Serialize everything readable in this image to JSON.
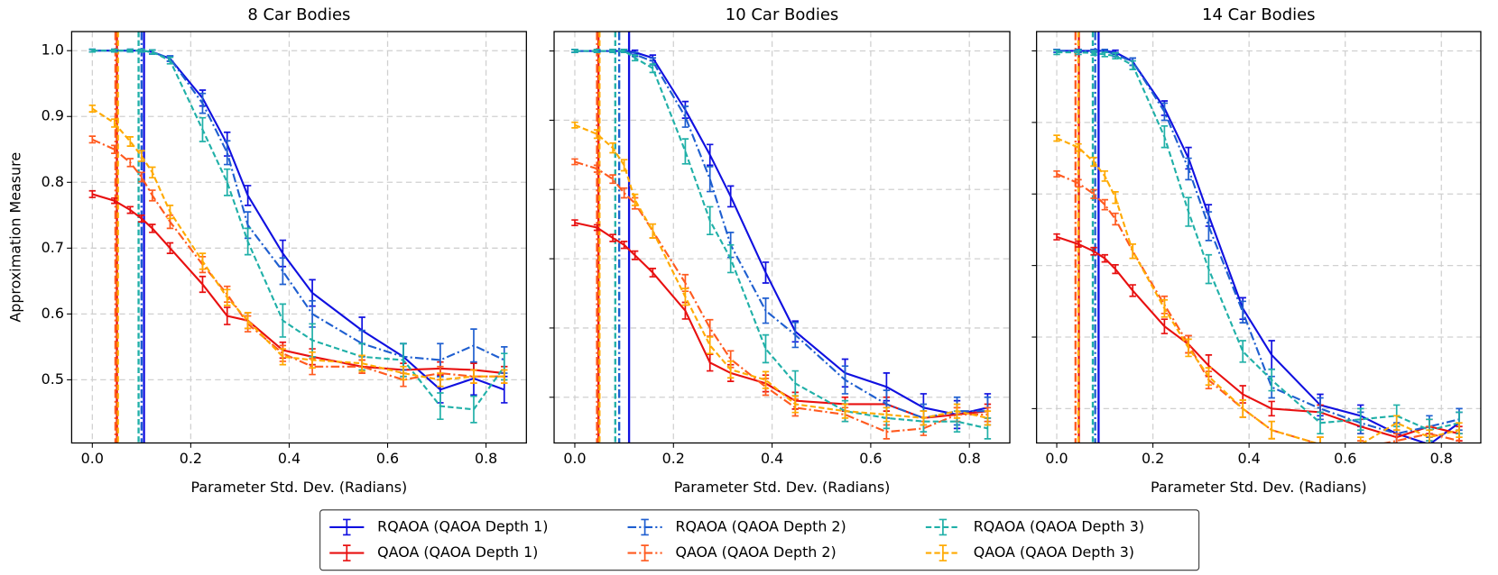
{
  "chart_data": [
    {
      "type": "line",
      "title": "8 Car Bodies",
      "xlabel": "Parameter Std. Dev. (Radians)",
      "ylabel": "Approximation Measure",
      "x": [
        0,
        0.045,
        0.077,
        0.1,
        0.122,
        0.158,
        0.224,
        0.274,
        0.316,
        0.387,
        0.447,
        0.548,
        0.632,
        0.707,
        0.775,
        0.837
      ],
      "xlim": [
        -0.042,
        0.882
      ],
      "ylim": [
        0.404,
        1.029
      ],
      "xticks": [
        {
          "value": 0,
          "label": "0.0"
        },
        {
          "value": 0.2,
          "label": "0.2"
        },
        {
          "value": 0.4,
          "label": "0.4"
        },
        {
          "value": 0.6,
          "label": "0.6"
        },
        {
          "value": 0.8,
          "label": "0.8"
        }
      ],
      "yticks": [
        {
          "value": 0.5,
          "label": "0.5"
        },
        0.6,
        0.7,
        0.8,
        0.9,
        {
          "value": 1,
          "label": "1.0"
        }
      ],
      "ytick_labels": true,
      "grid": true,
      "series": [
        {
          "name": "RQAOA (QAOA Depth 1)",
          "color": "#1010e0",
          "dash": "solid",
          "vline": 0.105,
          "values": [
            1,
            1,
            1,
            1,
            0.998,
            0.988,
            0.928,
            0.858,
            0.78,
            0.692,
            0.632,
            0.575,
            0.535,
            0.485,
            0.502,
            0.485
          ],
          "errors": [
            0.002,
            0.002,
            0.002,
            0.002,
            0.003,
            0.004,
            0.012,
            0.018,
            0.015,
            0.02,
            0.02,
            0.02,
            0.02,
            0.02,
            0.025,
            0.02
          ]
        },
        {
          "name": "QAOA (QAOA Depth 1)",
          "color": "#e81010",
          "dash": "solid",
          "vline": 0.05,
          "values": [
            0.782,
            0.772,
            0.758,
            0.745,
            0.73,
            0.7,
            0.645,
            0.597,
            0.59,
            0.545,
            0.535,
            0.52,
            0.515,
            0.517,
            0.515,
            0.51
          ],
          "errors": [
            0.005,
            0.004,
            0.005,
            0.005,
            0.006,
            0.008,
            0.012,
            0.013,
            0.012,
            0.012,
            0.012,
            0.01,
            0.01,
            0.01,
            0.01,
            0.01
          ]
        },
        {
          "name": "RQAOA (QAOA Depth 2)",
          "color": "#1f5fd0",
          "dash": "dashdot",
          "vline": 0.1,
          "values": [
            1,
            1,
            1,
            1,
            0.998,
            0.988,
            0.92,
            0.845,
            0.735,
            0.665,
            0.6,
            0.555,
            0.535,
            0.53,
            0.552,
            0.53
          ],
          "errors": [
            0.002,
            0.002,
            0.002,
            0.002,
            0.003,
            0.004,
            0.015,
            0.018,
            0.02,
            0.02,
            0.02,
            0.02,
            0.02,
            0.025,
            0.025,
            0.02
          ]
        },
        {
          "name": "QAOA (QAOA Depth 2)",
          "color": "#ff5a1f",
          "dash": "dashdot",
          "vline": 0.047,
          "values": [
            0.865,
            0.85,
            0.83,
            0.808,
            0.78,
            0.74,
            0.675,
            0.63,
            0.585,
            0.54,
            0.52,
            0.52,
            0.5,
            0.51,
            0.505,
            0.505
          ],
          "errors": [
            0.005,
            0.006,
            0.006,
            0.007,
            0.008,
            0.01,
            0.012,
            0.012,
            0.012,
            0.012,
            0.012,
            0.01,
            0.01,
            0.01,
            0.01,
            0.01
          ]
        },
        {
          "name": "RQAOA (QAOA Depth 3)",
          "color": "#20b0a8",
          "dash": "dashed",
          "vline": 0.094,
          "values": [
            1,
            1,
            1,
            1,
            0.998,
            0.985,
            0.88,
            0.8,
            0.71,
            0.59,
            0.56,
            0.535,
            0.53,
            0.46,
            0.455,
            0.52
          ],
          "errors": [
            0.002,
            0.002,
            0.002,
            0.002,
            0.003,
            0.005,
            0.018,
            0.02,
            0.02,
            0.025,
            0.025,
            0.02,
            0.025,
            0.02,
            0.02,
            0.02
          ]
        },
        {
          "name": "QAOA (QAOA Depth 3)",
          "color": "#ffaa00",
          "dash": "dashed",
          "vline": 0.052,
          "values": [
            0.912,
            0.89,
            0.862,
            0.84,
            0.815,
            0.755,
            0.68,
            0.625,
            0.59,
            0.535,
            0.53,
            0.525,
            0.51,
            0.5,
            0.505,
            0.505
          ],
          "errors": [
            0.005,
            0.006,
            0.007,
            0.008,
            0.008,
            0.01,
            0.012,
            0.012,
            0.012,
            0.012,
            0.012,
            0.012,
            0.01,
            0.01,
            0.01,
            0.01
          ]
        }
      ]
    },
    {
      "type": "line",
      "title": "10 Car Bodies",
      "xlabel": "Parameter Std. Dev. (Radians)",
      "x": [
        0,
        0.045,
        0.077,
        0.1,
        0.122,
        0.158,
        0.224,
        0.274,
        0.316,
        0.387,
        0.447,
        0.548,
        0.632,
        0.707,
        0.775,
        0.837
      ],
      "xlim": [
        -0.042,
        0.882
      ],
      "ylim": [
        0.434,
        1.028
      ],
      "xticks": [
        {
          "value": 0,
          "label": "0.0"
        },
        {
          "value": 0.2,
          "label": "0.2"
        },
        {
          "value": 0.4,
          "label": "0.4"
        },
        {
          "value": 0.6,
          "label": "0.6"
        },
        {
          "value": 0.8,
          "label": "0.8"
        }
      ],
      "yticks": [
        0.5,
        0.6,
        0.7,
        0.8,
        0.9,
        1
      ],
      "ytick_labels": false,
      "grid": true,
      "series": [
        {
          "name": "RQAOA (QAOA Depth 1)",
          "color": "#1010e0",
          "dash": "solid",
          "vline": 0.11,
          "values": [
            1,
            1,
            1,
            1,
            0.998,
            0.99,
            0.915,
            0.85,
            0.79,
            0.68,
            0.595,
            0.535,
            0.515,
            0.485,
            0.475,
            0.485
          ],
          "errors": [
            0.002,
            0.002,
            0.002,
            0.002,
            0.003,
            0.004,
            0.012,
            0.015,
            0.015,
            0.015,
            0.015,
            0.02,
            0.02,
            0.02,
            0.02,
            0.02
          ]
        },
        {
          "name": "QAOA (QAOA Depth 1)",
          "color": "#e81010",
          "dash": "solid",
          "vline": 0.048,
          "values": [
            0.752,
            0.745,
            0.73,
            0.72,
            0.705,
            0.68,
            0.625,
            0.55,
            0.535,
            0.52,
            0.495,
            0.49,
            0.49,
            0.47,
            0.475,
            0.48
          ],
          "errors": [
            0.004,
            0.004,
            0.005,
            0.005,
            0.006,
            0.006,
            0.012,
            0.012,
            0.012,
            0.012,
            0.012,
            0.01,
            0.01,
            0.01,
            0.01,
            0.01
          ]
        },
        {
          "name": "RQAOA (QAOA Depth 2)",
          "color": "#1f5fd0",
          "dash": "dashdot",
          "vline": 0.09,
          "values": [
            1,
            1,
            1,
            1,
            0.995,
            0.985,
            0.905,
            0.815,
            0.72,
            0.625,
            0.59,
            0.525,
            0.49,
            0.47,
            0.48,
            0.48
          ],
          "errors": [
            0.002,
            0.002,
            0.002,
            0.002,
            0.003,
            0.005,
            0.015,
            0.018,
            0.018,
            0.018,
            0.018,
            0.02,
            0.02,
            0.02,
            0.02,
            0.02
          ]
        },
        {
          "name": "QAOA (QAOA Depth 2)",
          "color": "#ff5a1f",
          "dash": "dashdot",
          "vline": 0.045,
          "values": [
            0.84,
            0.83,
            0.815,
            0.795,
            0.78,
            0.74,
            0.665,
            0.6,
            0.555,
            0.515,
            0.485,
            0.475,
            0.45,
            0.455,
            0.475,
            0.475
          ],
          "errors": [
            0.004,
            0.005,
            0.006,
            0.007,
            0.008,
            0.01,
            0.012,
            0.012,
            0.012,
            0.012,
            0.012,
            0.01,
            0.01,
            0.01,
            0.01,
            0.01
          ]
        },
        {
          "name": "RQAOA (QAOA Depth 3)",
          "color": "#20b0a8",
          "dash": "dashed",
          "vline": 0.082,
          "values": [
            1,
            1,
            1,
            1,
            0.99,
            0.975,
            0.855,
            0.755,
            0.7,
            0.57,
            0.52,
            0.48,
            0.47,
            0.465,
            0.465,
            0.455
          ],
          "errors": [
            0.002,
            0.002,
            0.002,
            0.002,
            0.004,
            0.006,
            0.018,
            0.02,
            0.02,
            0.02,
            0.018,
            0.015,
            0.015,
            0.015,
            0.015,
            0.015
          ]
        },
        {
          "name": "QAOA (QAOA Depth 3)",
          "color": "#ffaa00",
          "dash": "dashed",
          "vline": 0.05,
          "values": [
            0.893,
            0.88,
            0.86,
            0.835,
            0.785,
            0.74,
            0.645,
            0.575,
            0.54,
            0.525,
            0.49,
            0.48,
            0.475,
            0.47,
            0.48,
            0.47
          ],
          "errors": [
            0.004,
            0.006,
            0.007,
            0.008,
            0.008,
            0.01,
            0.012,
            0.012,
            0.012,
            0.012,
            0.012,
            0.01,
            0.01,
            0.01,
            0.01,
            0.01
          ]
        }
      ]
    },
    {
      "type": "line",
      "title": "14 Car Bodies",
      "xlabel": "Parameter Std. Dev. (Radians)",
      "x": [
        0,
        0.045,
        0.077,
        0.1,
        0.122,
        0.158,
        0.224,
        0.274,
        0.316,
        0.387,
        0.447,
        0.548,
        0.632,
        0.707,
        0.775,
        0.837
      ],
      "xlim": [
        -0.042,
        0.882
      ],
      "ylim": [
        0.452,
        1.027
      ],
      "xticks": [
        {
          "value": 0,
          "label": "0.0"
        },
        {
          "value": 0.2,
          "label": "0.2"
        },
        {
          "value": 0.4,
          "label": "0.4"
        },
        {
          "value": 0.6,
          "label": "0.6"
        },
        {
          "value": 0.8,
          "label": "0.8"
        }
      ],
      "yticks": [
        0.5,
        0.6,
        0.7,
        0.8,
        0.9,
        1
      ],
      "ytick_labels": false,
      "grid": true,
      "series": [
        {
          "name": "RQAOA (QAOA Depth 1)",
          "color": "#1010e0",
          "dash": "solid",
          "vline": 0.087,
          "values": [
            1,
            1,
            1,
            1,
            0.998,
            0.985,
            0.92,
            0.85,
            0.77,
            0.64,
            0.575,
            0.505,
            0.49,
            0.465,
            0.45,
            0.48
          ],
          "errors": [
            0.002,
            0.002,
            0.002,
            0.002,
            0.003,
            0.005,
            0.01,
            0.015,
            0.015,
            0.015,
            0.02,
            0.015,
            0.015,
            0.015,
            0.015,
            0.015
          ]
        },
        {
          "name": "QAOA (QAOA Depth 1)",
          "color": "#e81010",
          "dash": "solid",
          "vline": 0.046,
          "values": [
            0.74,
            0.73,
            0.72,
            0.71,
            0.695,
            0.665,
            0.615,
            0.59,
            0.56,
            0.52,
            0.5,
            0.495,
            0.475,
            0.46,
            0.475,
            0.465
          ],
          "errors": [
            0.004,
            0.004,
            0.005,
            0.005,
            0.006,
            0.008,
            0.01,
            0.012,
            0.015,
            0.012,
            0.01,
            0.01,
            0.01,
            0.01,
            0.01,
            0.01
          ]
        },
        {
          "name": "RQAOA (QAOA Depth 2)",
          "color": "#1f5fd0",
          "dash": "dashdot",
          "vline": 0.08,
          "values": [
            1,
            1,
            1,
            1,
            0.995,
            0.985,
            0.915,
            0.835,
            0.755,
            0.635,
            0.53,
            0.5,
            0.48,
            0.465,
            0.475,
            0.485
          ],
          "errors": [
            0.002,
            0.002,
            0.002,
            0.002,
            0.003,
            0.005,
            0.012,
            0.015,
            0.02,
            0.015,
            0.015,
            0.015,
            0.015,
            0.015,
            0.015,
            0.015
          ]
        },
        {
          "name": "QAOA (QAOA Depth 2)",
          "color": "#ff5a1f",
          "dash": "dashdot",
          "vline": 0.039,
          "values": [
            0.828,
            0.815,
            0.8,
            0.785,
            0.765,
            0.72,
            0.645,
            0.59,
            0.54,
            0.5,
            0.47,
            0.45,
            0.445,
            0.455,
            0.465,
            0.455
          ],
          "errors": [
            0.004,
            0.005,
            0.006,
            0.007,
            0.008,
            0.01,
            0.012,
            0.012,
            0.012,
            0.012,
            0.012,
            0.01,
            0.01,
            0.01,
            0.01,
            0.01
          ]
        },
        {
          "name": "RQAOA (QAOA Depth 3)",
          "color": "#20b0a8",
          "dash": "dashed",
          "vline": 0.075,
          "values": [
            0.998,
            0.998,
            0.997,
            0.995,
            0.993,
            0.98,
            0.88,
            0.775,
            0.695,
            0.58,
            0.54,
            0.48,
            0.485,
            0.49,
            0.47,
            0.48
          ],
          "errors": [
            0.003,
            0.003,
            0.003,
            0.003,
            0.004,
            0.006,
            0.015,
            0.02,
            0.02,
            0.015,
            0.015,
            0.015,
            0.015,
            0.015,
            0.015,
            0.015
          ]
        },
        {
          "name": "QAOA (QAOA Depth 3)",
          "color": "#ffaa00",
          "dash": "dashed",
          "vline": 0.045,
          "values": [
            0.878,
            0.865,
            0.845,
            0.825,
            0.795,
            0.72,
            0.64,
            0.585,
            0.545,
            0.5,
            0.47,
            0.45,
            0.45,
            0.48,
            0.46,
            0.47
          ],
          "errors": [
            0.004,
            0.005,
            0.006,
            0.007,
            0.008,
            0.01,
            0.012,
            0.012,
            0.012,
            0.012,
            0.012,
            0.01,
            0.01,
            0.01,
            0.01,
            0.01
          ]
        }
      ]
    }
  ]
}
